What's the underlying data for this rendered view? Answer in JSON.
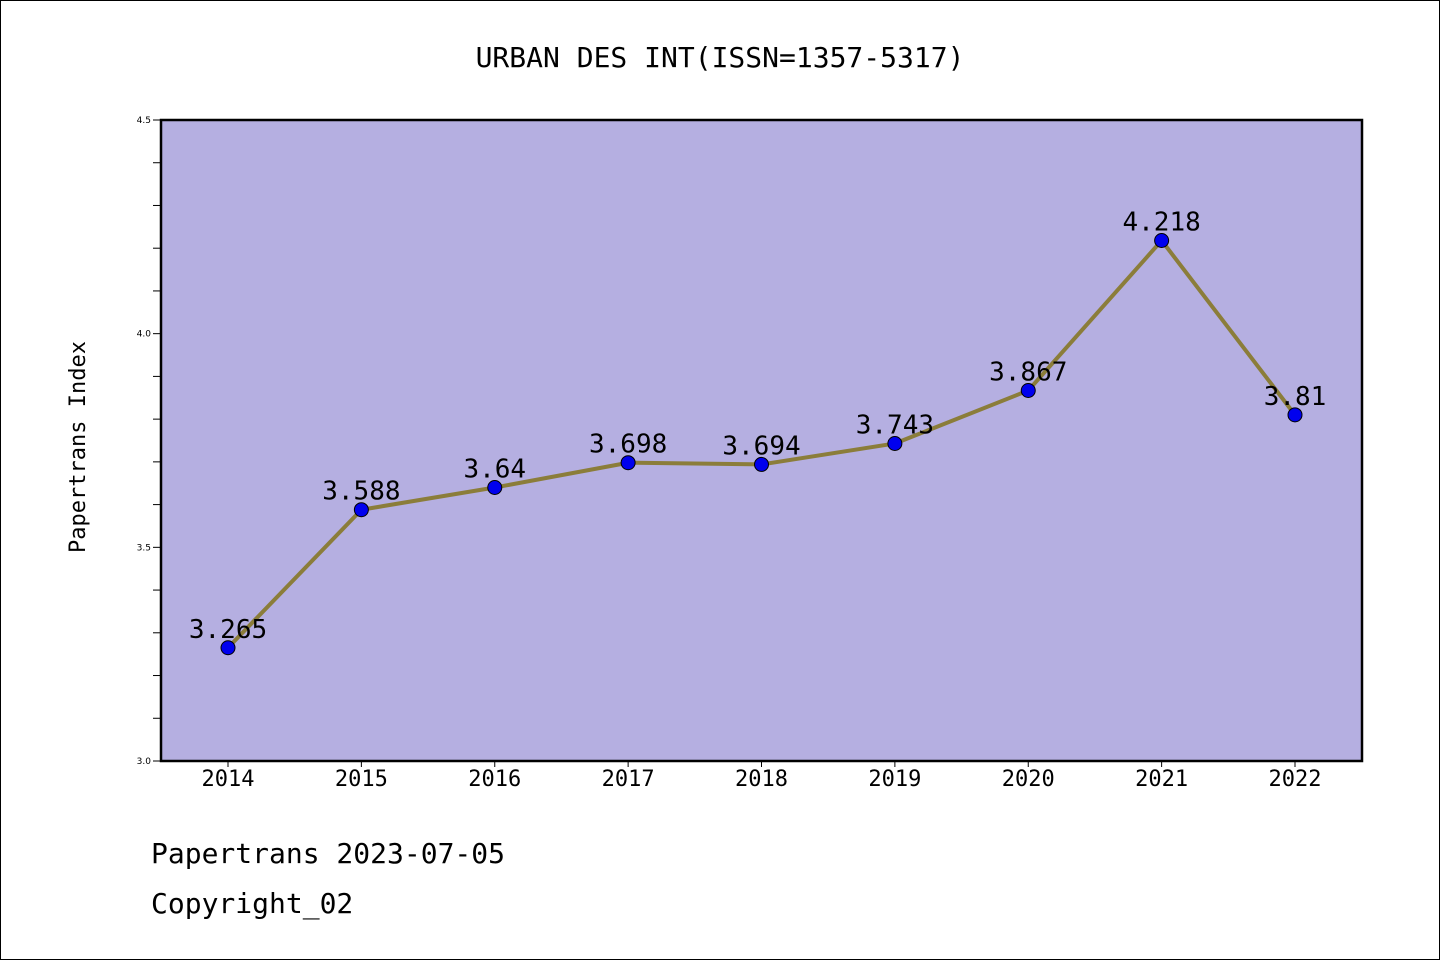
{
  "chart_data": {
    "type": "line",
    "title": "URBAN DES INT(ISSN=1357-5317)",
    "xlabel": "",
    "ylabel": "Papertrans Index",
    "categories": [
      "2014",
      "2015",
      "2016",
      "2017",
      "2018",
      "2019",
      "2020",
      "2021",
      "2022"
    ],
    "series": [
      {
        "values": [
          3.265,
          3.588,
          3.64,
          3.698,
          3.694,
          3.743,
          3.867,
          4.218,
          3.81
        ],
        "data_labels": [
          "3.265",
          "3.588",
          "3.64",
          "3.698",
          "3.694",
          "3.743",
          "3.867",
          "4.218",
          "3.81"
        ],
        "line_color": "#8b7d3a",
        "marker_color": "#0000ee"
      }
    ],
    "ylim": [
      3.0,
      4.5
    ],
    "yticks": [
      "3.0",
      "3.5",
      "4.0",
      "4.5"
    ],
    "grid": false,
    "plot_background": "#b5afe1"
  },
  "footer": {
    "line1": "Papertrans 2023-07-05",
    "line2": "Copyright_02"
  }
}
